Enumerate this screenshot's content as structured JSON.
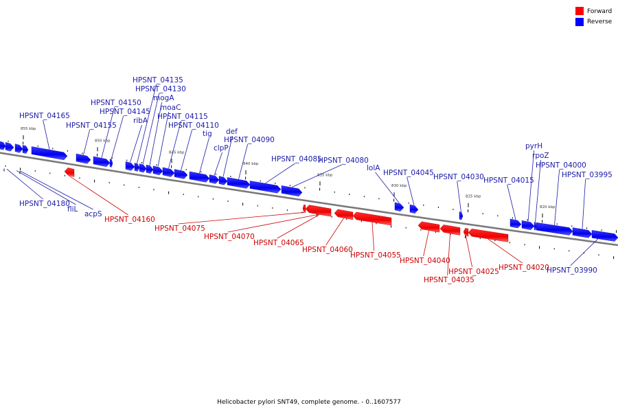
{
  "legend": [
    {
      "label": "Forward",
      "color": "#ff0000"
    },
    {
      "label": "Reverse",
      "color": "#0000ff"
    }
  ],
  "caption": "Helicobacter pylori SNT49, complete genome. - 0..1607577",
  "scale": {
    "unit": "kbp",
    "ticks": [
      {
        "kbp": 855,
        "label": "855 kbp"
      },
      {
        "kbp": 850,
        "label": "850 kbp"
      },
      {
        "kbp": 845,
        "label": "845 kbp"
      },
      {
        "kbp": 840,
        "label": "840 kbp"
      },
      {
        "kbp": 835,
        "label": "835 kbp"
      },
      {
        "kbp": 830,
        "label": "830 kbp"
      },
      {
        "kbp": 825,
        "label": "825 kbp"
      },
      {
        "kbp": 820,
        "label": "820 kbp"
      }
    ]
  },
  "genes": [
    {
      "name": "HPSNT_04180",
      "strand": "reverse"
    },
    {
      "name": "fliL",
      "strand": "reverse"
    },
    {
      "name": "acpS",
      "strand": "reverse"
    },
    {
      "name": "HPSNT_04165",
      "strand": "reverse"
    },
    {
      "name": "HPSNT_04160",
      "strand": "forward"
    },
    {
      "name": "HPSNT_04155",
      "strand": "reverse"
    },
    {
      "name": "HPSNT_04150",
      "strand": "reverse"
    },
    {
      "name": "HPSNT_04145",
      "strand": "reverse"
    },
    {
      "name": "ribA",
      "strand": "reverse"
    },
    {
      "name": "HPSNT_04135",
      "strand": "reverse"
    },
    {
      "name": "HPSNT_04130",
      "strand": "reverse"
    },
    {
      "name": "mogA",
      "strand": "reverse"
    },
    {
      "name": "moaC",
      "strand": "reverse"
    },
    {
      "name": "HPSNT_04115",
      "strand": "reverse"
    },
    {
      "name": "HPSNT_04110",
      "strand": "reverse"
    },
    {
      "name": "tig",
      "strand": "reverse"
    },
    {
      "name": "clpP",
      "strand": "reverse"
    },
    {
      "name": "def",
      "strand": "reverse"
    },
    {
      "name": "HPSNT_04090",
      "strand": "reverse"
    },
    {
      "name": "HPSNT_04085",
      "strand": "reverse"
    },
    {
      "name": "HPSNT_04080",
      "strand": "reverse"
    },
    {
      "name": "HPSNT_04075",
      "strand": "forward"
    },
    {
      "name": "HPSNT_04070",
      "strand": "forward"
    },
    {
      "name": "HPSNT_04065",
      "strand": "forward"
    },
    {
      "name": "HPSNT_04060",
      "strand": "forward"
    },
    {
      "name": "HPSNT_04055",
      "strand": "forward"
    },
    {
      "name": "lolA",
      "strand": "reverse"
    },
    {
      "name": "HPSNT_04045",
      "strand": "reverse"
    },
    {
      "name": "HPSNT_04040",
      "strand": "forward"
    },
    {
      "name": "HPSNT_04035",
      "strand": "forward"
    },
    {
      "name": "HPSNT_04030",
      "strand": "reverse"
    },
    {
      "name": "HPSNT_04025",
      "strand": "forward"
    },
    {
      "name": "HPSNT_04020",
      "strand": "forward"
    },
    {
      "name": "HPSNT_04015",
      "strand": "reverse"
    },
    {
      "name": "pyrH",
      "strand": "reverse"
    },
    {
      "name": "rpoZ",
      "strand": "reverse"
    },
    {
      "name": "HPSNT_04000",
      "strand": "reverse"
    },
    {
      "name": "HPSNT_03995",
      "strand": "reverse"
    },
    {
      "name": "HPSNT_03990",
      "strand": "reverse"
    }
  ]
}
